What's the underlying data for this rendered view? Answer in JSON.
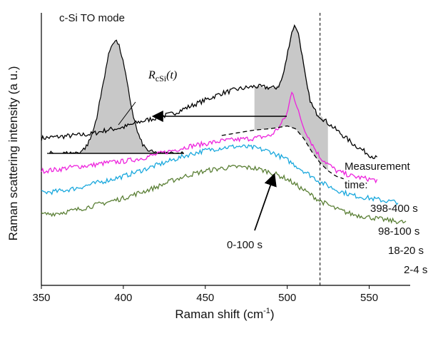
{
  "chart_data": {
    "type": "line",
    "xlabel": "Raman shift (cm",
    "xlabel_sup": "-1",
    "xlabel_end": ")",
    "ylabel": "Raman scattering intensity (a u.)",
    "xlim": [
      350,
      575
    ],
    "x_ticks": [
      350,
      400,
      450,
      500,
      550
    ],
    "y_ticks": "none",
    "reference_line_x": 520,
    "inset_title": "c-Si TO mode",
    "inset_label": "R",
    "inset_label_sub": "cSi",
    "inset_label_arg": "(t)",
    "annotation": "0-100 s",
    "legend_title_1": "Measurement",
    "legend_title_2": "time:",
    "series": [
      {
        "name": "398-400 s",
        "color": "#000000",
        "note": "broad hump plus sharp c-Si peak at ~505",
        "points": [
          [
            350,
            0.54
          ],
          [
            360,
            0.545
          ],
          [
            370,
            0.55
          ],
          [
            380,
            0.555
          ],
          [
            390,
            0.57
          ],
          [
            400,
            0.58
          ],
          [
            410,
            0.6
          ],
          [
            420,
            0.615
          ],
          [
            430,
            0.63
          ],
          [
            440,
            0.655
          ],
          [
            450,
            0.68
          ],
          [
            460,
            0.705
          ],
          [
            470,
            0.72
          ],
          [
            480,
            0.73
          ],
          [
            490,
            0.725
          ],
          [
            500,
            0.7
          ],
          [
            510,
            0.66
          ],
          [
            520,
            0.62
          ],
          [
            530,
            0.57
          ],
          [
            540,
            0.52
          ],
          [
            550,
            0.48
          ],
          [
            555,
            0.465
          ]
        ]
      },
      {
        "name": "98-100 s",
        "color": "#ee22dd",
        "points": [
          [
            350,
            0.42
          ],
          [
            360,
            0.425
          ],
          [
            370,
            0.435
          ],
          [
            380,
            0.44
          ],
          [
            390,
            0.45
          ],
          [
            400,
            0.455
          ],
          [
            410,
            0.465
          ],
          [
            420,
            0.48
          ],
          [
            430,
            0.495
          ],
          [
            440,
            0.51
          ],
          [
            450,
            0.52
          ],
          [
            460,
            0.53
          ],
          [
            470,
            0.535
          ],
          [
            480,
            0.54
          ],
          [
            490,
            0.55
          ],
          [
            495,
            0.58
          ],
          [
            500,
            0.63
          ],
          [
            503,
            0.72
          ],
          [
            506,
            0.65
          ],
          [
            510,
            0.58
          ],
          [
            515,
            0.52
          ],
          [
            520,
            0.47
          ],
          [
            530,
            0.42
          ],
          [
            540,
            0.4
          ],
          [
            550,
            0.39
          ],
          [
            555,
            0.385
          ]
        ]
      },
      {
        "name": "18-20 s",
        "color": "#1aa8dd",
        "points": [
          [
            350,
            0.34
          ],
          [
            360,
            0.345
          ],
          [
            370,
            0.355
          ],
          [
            380,
            0.37
          ],
          [
            390,
            0.385
          ],
          [
            400,
            0.4
          ],
          [
            410,
            0.42
          ],
          [
            420,
            0.44
          ],
          [
            430,
            0.46
          ],
          [
            440,
            0.48
          ],
          [
            450,
            0.495
          ],
          [
            460,
            0.505
          ],
          [
            470,
            0.51
          ],
          [
            480,
            0.505
          ],
          [
            490,
            0.49
          ],
          [
            500,
            0.46
          ],
          [
            510,
            0.42
          ],
          [
            520,
            0.38
          ],
          [
            530,
            0.35
          ],
          [
            540,
            0.33
          ],
          [
            550,
            0.32
          ],
          [
            560,
            0.31
          ],
          [
            568,
            0.305
          ]
        ]
      },
      {
        "name": "2-4 s",
        "color": "#5a7f35",
        "points": [
          [
            350,
            0.26
          ],
          [
            360,
            0.265
          ],
          [
            370,
            0.275
          ],
          [
            380,
            0.29
          ],
          [
            390,
            0.305
          ],
          [
            400,
            0.32
          ],
          [
            410,
            0.34
          ],
          [
            420,
            0.36
          ],
          [
            430,
            0.385
          ],
          [
            440,
            0.405
          ],
          [
            450,
            0.42
          ],
          [
            460,
            0.43
          ],
          [
            470,
            0.435
          ],
          [
            480,
            0.43
          ],
          [
            490,
            0.415
          ],
          [
            500,
            0.39
          ],
          [
            510,
            0.35
          ],
          [
            520,
            0.31
          ],
          [
            530,
            0.28
          ],
          [
            540,
            0.26
          ],
          [
            550,
            0.25
          ],
          [
            560,
            0.24
          ],
          [
            573,
            0.23
          ]
        ]
      },
      {
        "name": "0-100 s",
        "color": "#000000",
        "dash": true,
        "points": [
          [
            460,
            0.55
          ],
          [
            470,
            0.56
          ],
          [
            480,
            0.57
          ],
          [
            490,
            0.575
          ],
          [
            495,
            0.58
          ],
          [
            500,
            0.585
          ],
          [
            505,
            0.575
          ],
          [
            510,
            0.54
          ],
          [
            515,
            0.49
          ],
          [
            520,
            0.45
          ],
          [
            525,
            0.42
          ],
          [
            530,
            0.4
          ],
          [
            535,
            0.39
          ]
        ]
      }
    ],
    "inset_peak": {
      "center": 395,
      "note": "shaded c-Si peak of the 398-400 s spectrum, shifted left"
    }
  }
}
